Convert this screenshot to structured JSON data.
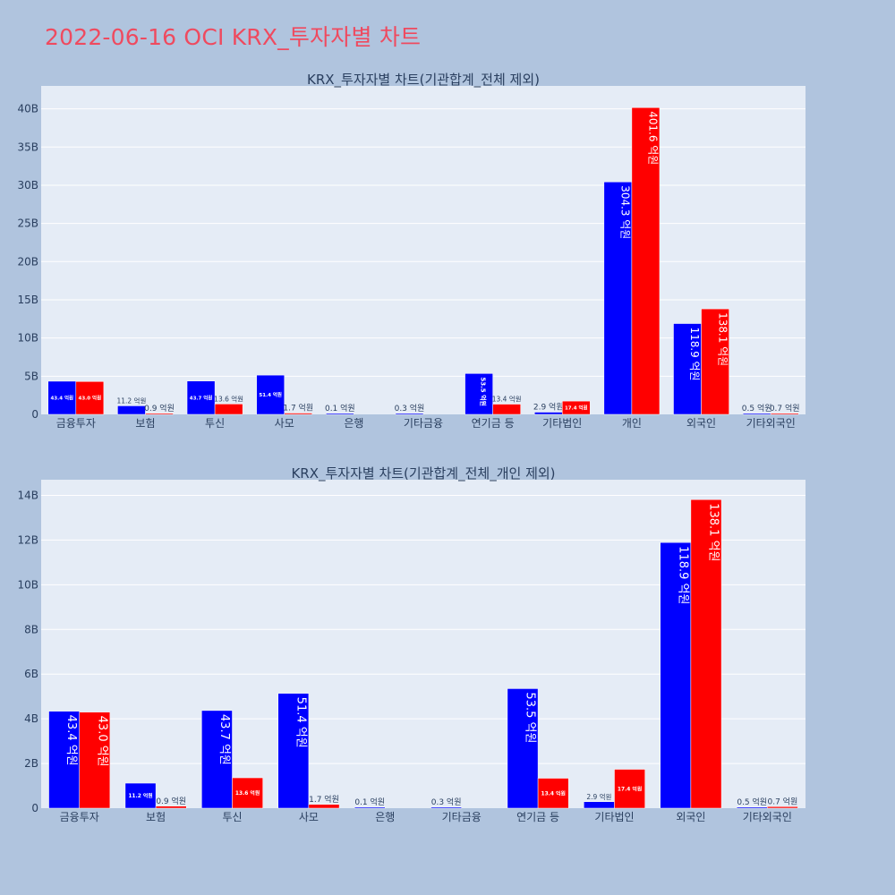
{
  "page": {
    "title": "2022-06-16 OCI KRX_투자자별 차트"
  },
  "colors": {
    "background": "#b0c4de",
    "plot_bg": "#e5ecf6",
    "title": "#ef4a5f",
    "text": "#2a3f5f",
    "series_blue": "#0000ff",
    "series_red": "#ff0000"
  },
  "chart_data": [
    {
      "type": "bar",
      "title": "KRX_투자자별 차트(기관합계_전체 제외)",
      "categories": [
        "금융투자",
        "보험",
        "투신",
        "사모",
        "은행",
        "기타금융",
        "연기금 등",
        "기타법인",
        "개인",
        "외국인",
        "기타외국인"
      ],
      "series": [
        {
          "color": "#0000ff",
          "values": [
            4.34,
            1.12,
            4.37,
            5.14,
            0.01,
            0.03,
            5.35,
            0.29,
            30.43,
            11.89,
            0.05
          ],
          "labels": [
            "43.4 억원",
            "11.2 억원",
            "43.7 억원",
            "51.4 억원",
            "0.1 억원",
            "0.3 억원",
            "53.5 억원",
            "2.9 억원",
            "304.3 억원",
            "118.9 억원",
            "0.5 억원"
          ]
        },
        {
          "color": "#ff0000",
          "values": [
            4.3,
            0.09,
            1.36,
            0.17,
            0,
            0,
            1.34,
            1.74,
            40.16,
            13.81,
            0.07
          ],
          "labels": [
            "43.0 억원",
            "0.9 억원",
            "13.6 억원",
            "1.7 억원",
            "",
            "",
            "13.4 억원",
            "17.4 억원",
            "401.6 억원",
            "138.1 억원",
            "0.7 억원"
          ]
        }
      ],
      "yticks": [
        0,
        5,
        10,
        15,
        20,
        25,
        30,
        35,
        40
      ],
      "ytick_labels": [
        "0",
        "5B",
        "10B",
        "15B",
        "20B",
        "25B",
        "30B",
        "35B",
        "40B"
      ],
      "ylim": [
        0,
        43
      ],
      "grid": true
    },
    {
      "type": "bar",
      "title": "KRX_투자자별 차트(기관합계_전체_개인 제외)",
      "categories": [
        "금융투자",
        "보험",
        "투신",
        "사모",
        "은행",
        "기타금융",
        "연기금 등",
        "기타법인",
        "외국인",
        "기타외국인"
      ],
      "series": [
        {
          "color": "#0000ff",
          "values": [
            4.34,
            1.12,
            4.37,
            5.14,
            0.01,
            0.03,
            5.35,
            0.29,
            11.89,
            0.05
          ],
          "labels": [
            "43.4 억원",
            "11.2 억원",
            "43.7 억원",
            "51.4 억원",
            "0.1 억원",
            "0.3 억원",
            "53.5 억원",
            "2.9 억원",
            "118.9 억원",
            "0.5 억원"
          ]
        },
        {
          "color": "#ff0000",
          "values": [
            4.3,
            0.09,
            1.36,
            0.17,
            0,
            0,
            1.34,
            1.74,
            13.81,
            0.07
          ],
          "labels": [
            "43.0 억원",
            "0.9 억원",
            "13.6 억원",
            "1.7 억원",
            "",
            "",
            "13.4 억원",
            "17.4 억원",
            "138.1 억원",
            "0.7 억원"
          ]
        }
      ],
      "yticks": [
        0,
        2,
        4,
        6,
        8,
        10,
        12,
        14
      ],
      "ytick_labels": [
        "0",
        "2B",
        "4B",
        "6B",
        "8B",
        "10B",
        "12B",
        "14B"
      ],
      "ylim": [
        0,
        14.7
      ],
      "grid": true
    }
  ]
}
